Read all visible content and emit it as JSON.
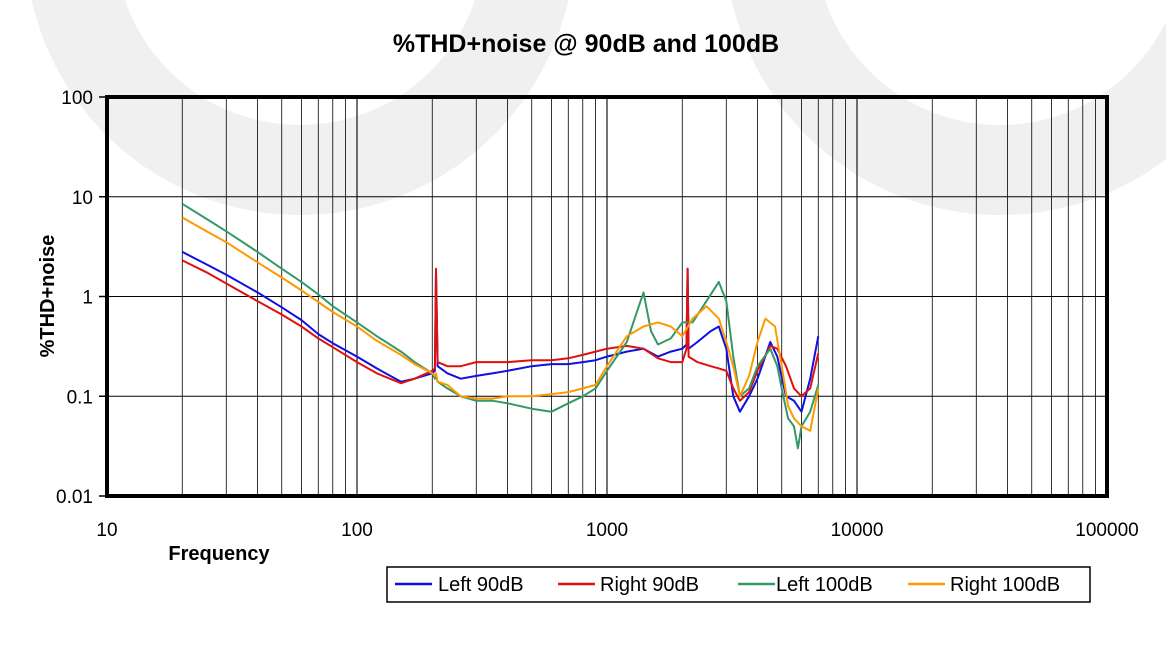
{
  "chart_data": {
    "type": "line",
    "title": "%THD+noise @ 90dB and 100dB",
    "xlabel": "Frequency",
    "ylabel": "%THD+noise",
    "x_scale": "log",
    "y_scale": "log",
    "xlim": [
      10,
      100000
    ],
    "ylim": [
      0.01,
      100
    ],
    "x_ticks": [
      "10",
      "100",
      "1000",
      "10000",
      "100000"
    ],
    "y_ticks": [
      "100",
      "10",
      "1",
      "0.1",
      "0.01"
    ],
    "grid": "vertical minor and major lines; horizontal at decades",
    "legend_position": "bottom-right, below plot",
    "series": [
      {
        "name": "Left 90dB",
        "color": "#1010e0",
        "points": [
          [
            20,
            2.8
          ],
          [
            25,
            2.1
          ],
          [
            30,
            1.65
          ],
          [
            40,
            1.1
          ],
          [
            50,
            0.78
          ],
          [
            60,
            0.58
          ],
          [
            70,
            0.42
          ],
          [
            80,
            0.34
          ],
          [
            100,
            0.25
          ],
          [
            120,
            0.19
          ],
          [
            150,
            0.14
          ],
          [
            170,
            0.15
          ],
          [
            200,
            0.17
          ],
          [
            205,
            0.18
          ],
          [
            207,
            1.8
          ],
          [
            210,
            0.2
          ],
          [
            230,
            0.17
          ],
          [
            260,
            0.15
          ],
          [
            300,
            0.16
          ],
          [
            350,
            0.17
          ],
          [
            400,
            0.18
          ],
          [
            500,
            0.2
          ],
          [
            600,
            0.21
          ],
          [
            700,
            0.21
          ],
          [
            800,
            0.22
          ],
          [
            900,
            0.23
          ],
          [
            1000,
            0.25
          ],
          [
            1200,
            0.28
          ],
          [
            1400,
            0.3
          ],
          [
            1600,
            0.25
          ],
          [
            1800,
            0.28
          ],
          [
            2000,
            0.3
          ],
          [
            2080,
            0.33
          ],
          [
            2100,
            1.9
          ],
          [
            2120,
            0.3
          ],
          [
            2300,
            0.35
          ],
          [
            2600,
            0.45
          ],
          [
            2800,
            0.5
          ],
          [
            3000,
            0.3
          ],
          [
            3200,
            0.1
          ],
          [
            3400,
            0.07
          ],
          [
            3700,
            0.1
          ],
          [
            4000,
            0.15
          ],
          [
            4500,
            0.35
          ],
          [
            4800,
            0.25
          ],
          [
            5200,
            0.1
          ],
          [
            5600,
            0.09
          ],
          [
            6000,
            0.07
          ],
          [
            6500,
            0.15
          ],
          [
            7000,
            0.4
          ]
        ]
      },
      {
        "name": "Right 90dB",
        "color": "#e01010",
        "points": [
          [
            20,
            2.3
          ],
          [
            25,
            1.75
          ],
          [
            30,
            1.35
          ],
          [
            40,
            0.9
          ],
          [
            50,
            0.66
          ],
          [
            60,
            0.5
          ],
          [
            70,
            0.38
          ],
          [
            80,
            0.31
          ],
          [
            100,
            0.22
          ],
          [
            120,
            0.17
          ],
          [
            150,
            0.135
          ],
          [
            170,
            0.15
          ],
          [
            200,
            0.18
          ],
          [
            205,
            0.19
          ],
          [
            207,
            1.9
          ],
          [
            210,
            0.22
          ],
          [
            230,
            0.2
          ],
          [
            260,
            0.2
          ],
          [
            300,
            0.22
          ],
          [
            350,
            0.22
          ],
          [
            400,
            0.22
          ],
          [
            500,
            0.23
          ],
          [
            600,
            0.23
          ],
          [
            700,
            0.24
          ],
          [
            800,
            0.26
          ],
          [
            900,
            0.28
          ],
          [
            1000,
            0.3
          ],
          [
            1200,
            0.32
          ],
          [
            1400,
            0.3
          ],
          [
            1600,
            0.24
          ],
          [
            1800,
            0.22
          ],
          [
            2000,
            0.22
          ],
          [
            2080,
            0.3
          ],
          [
            2100,
            1.9
          ],
          [
            2120,
            0.25
          ],
          [
            2300,
            0.22
          ],
          [
            2600,
            0.2
          ],
          [
            2800,
            0.19
          ],
          [
            3000,
            0.18
          ],
          [
            3200,
            0.12
          ],
          [
            3400,
            0.09
          ],
          [
            3700,
            0.11
          ],
          [
            4000,
            0.18
          ],
          [
            4500,
            0.32
          ],
          [
            4800,
            0.3
          ],
          [
            5200,
            0.2
          ],
          [
            5600,
            0.12
          ],
          [
            6000,
            0.1
          ],
          [
            6500,
            0.12
          ],
          [
            7000,
            0.27
          ]
        ]
      },
      {
        "name": "Left 100dB",
        "color": "#339966",
        "points": [
          [
            20,
            8.5
          ],
          [
            25,
            6.0
          ],
          [
            30,
            4.5
          ],
          [
            40,
            2.8
          ],
          [
            50,
            1.9
          ],
          [
            60,
            1.4
          ],
          [
            70,
            1.05
          ],
          [
            80,
            0.8
          ],
          [
            100,
            0.55
          ],
          [
            120,
            0.4
          ],
          [
            150,
            0.28
          ],
          [
            170,
            0.22
          ],
          [
            200,
            0.17
          ],
          [
            205,
            0.15
          ],
          [
            207,
            0.16
          ],
          [
            210,
            0.14
          ],
          [
            230,
            0.12
          ],
          [
            260,
            0.1
          ],
          [
            300,
            0.09
          ],
          [
            350,
            0.09
          ],
          [
            400,
            0.085
          ],
          [
            500,
            0.075
          ],
          [
            600,
            0.07
          ],
          [
            700,
            0.085
          ],
          [
            800,
            0.1
          ],
          [
            900,
            0.12
          ],
          [
            1000,
            0.18
          ],
          [
            1200,
            0.35
          ],
          [
            1400,
            1.1
          ],
          [
            1500,
            0.45
          ],
          [
            1600,
            0.33
          ],
          [
            1800,
            0.38
          ],
          [
            2000,
            0.55
          ],
          [
            2200,
            0.55
          ],
          [
            2500,
            0.9
          ],
          [
            2800,
            1.4
          ],
          [
            3000,
            0.9
          ],
          [
            3200,
            0.25
          ],
          [
            3400,
            0.1
          ],
          [
            3700,
            0.12
          ],
          [
            4000,
            0.2
          ],
          [
            4500,
            0.3
          ],
          [
            4800,
            0.2
          ],
          [
            5000,
            0.12
          ],
          [
            5300,
            0.06
          ],
          [
            5600,
            0.05
          ],
          [
            5800,
            0.03
          ],
          [
            6000,
            0.05
          ],
          [
            6500,
            0.07
          ],
          [
            7000,
            0.13
          ]
        ]
      },
      {
        "name": "Right 100dB",
        "color": "#ff9900",
        "points": [
          [
            20,
            6.2
          ],
          [
            25,
            4.5
          ],
          [
            30,
            3.5
          ],
          [
            40,
            2.2
          ],
          [
            50,
            1.55
          ],
          [
            60,
            1.15
          ],
          [
            70,
            0.88
          ],
          [
            80,
            0.7
          ],
          [
            100,
            0.5
          ],
          [
            120,
            0.36
          ],
          [
            150,
            0.26
          ],
          [
            170,
            0.21
          ],
          [
            200,
            0.17
          ],
          [
            205,
            0.16
          ],
          [
            207,
            0.17
          ],
          [
            210,
            0.14
          ],
          [
            230,
            0.13
          ],
          [
            260,
            0.1
          ],
          [
            300,
            0.095
          ],
          [
            350,
            0.095
          ],
          [
            400,
            0.1
          ],
          [
            500,
            0.1
          ],
          [
            600,
            0.105
          ],
          [
            700,
            0.11
          ],
          [
            800,
            0.12
          ],
          [
            900,
            0.13
          ],
          [
            1000,
            0.2
          ],
          [
            1200,
            0.4
          ],
          [
            1400,
            0.5
          ],
          [
            1600,
            0.55
          ],
          [
            1800,
            0.5
          ],
          [
            2000,
            0.4
          ],
          [
            2200,
            0.6
          ],
          [
            2500,
            0.8
          ],
          [
            2800,
            0.6
          ],
          [
            3000,
            0.35
          ],
          [
            3200,
            0.2
          ],
          [
            3400,
            0.1
          ],
          [
            3700,
            0.16
          ],
          [
            4000,
            0.35
          ],
          [
            4300,
            0.6
          ],
          [
            4700,
            0.5
          ],
          [
            5000,
            0.2
          ],
          [
            5300,
            0.08
          ],
          [
            5600,
            0.06
          ],
          [
            6000,
            0.05
          ],
          [
            6500,
            0.045
          ],
          [
            7000,
            0.12
          ]
        ]
      }
    ]
  }
}
